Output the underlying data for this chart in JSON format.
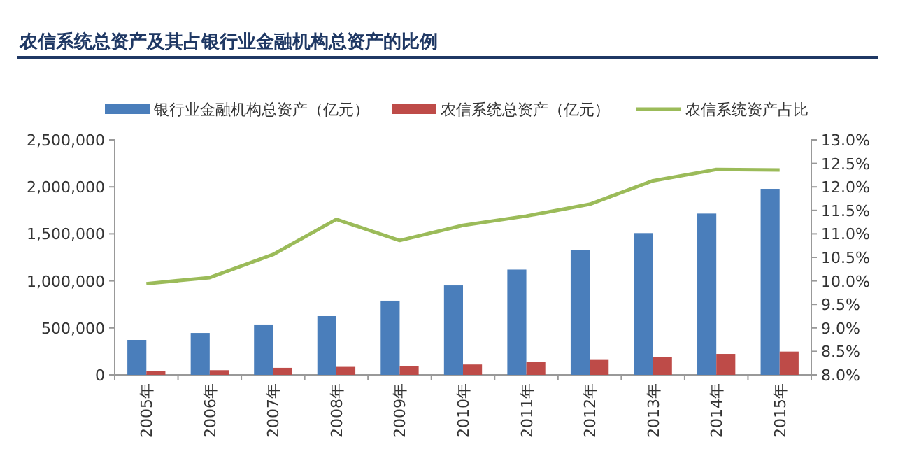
{
  "chart_data": {
    "type": "bar",
    "title": "农信系统总资产及其占银行业金融机构总资产的比例",
    "categories": [
      "2005年",
      "2006年",
      "2007年",
      "2008年",
      "2009年",
      "2010年",
      "2011年",
      "2012年",
      "2013年",
      "2014年",
      "2015年"
    ],
    "series": [
      {
        "name": "银行业金融机构总资产（亿元）",
        "color": "#4a7ebb",
        "values": [
          372000,
          446000,
          536000,
          625000,
          789000,
          952000,
          1120000,
          1329000,
          1508000,
          1716000,
          1979000
        ]
      },
      {
        "name": "农信系统总资产（亿元）",
        "color": "#be4b48",
        "values": [
          40000,
          50000,
          75000,
          85000,
          95000,
          110000,
          134000,
          159000,
          189000,
          223000,
          248000
        ]
      },
      {
        "name": "农信系统资产占比",
        "type": "line",
        "axis": "y2",
        "color": "#9bbb59",
        "values": [
          9.94,
          10.07,
          10.56,
          11.31,
          10.86,
          11.18,
          11.38,
          11.63,
          12.13,
          12.37,
          12.36
        ]
      }
    ],
    "ylim": [
      0,
      2500000
    ],
    "yticks": [
      {
        "value": 0,
        "label": "0"
      },
      {
        "value": 500000,
        "label": "500,000"
      },
      {
        "value": 1000000,
        "label": "1,000,000"
      },
      {
        "value": 1500000,
        "label": "1,500,000"
      },
      {
        "value": 2000000,
        "label": "2,000,000"
      },
      {
        "value": 2500000,
        "label": "2,500,000"
      }
    ],
    "y2lim": [
      8,
      13
    ],
    "y2ticks": [
      {
        "value": 8,
        "label": "8.0%"
      },
      {
        "value": 8.5,
        "label": "8.5%"
      },
      {
        "value": 9,
        "label": "9.0%"
      },
      {
        "value": 9.5,
        "label": "9.5%"
      },
      {
        "value": 10,
        "label": "10.0%"
      },
      {
        "value": 10.5,
        "label": "10.5%"
      },
      {
        "value": 11,
        "label": "11.0%"
      },
      {
        "value": 11.5,
        "label": "11.5%"
      },
      {
        "value": 12,
        "label": "12.0%"
      },
      {
        "value": 12.5,
        "label": "12.5%"
      },
      {
        "value": 13,
        "label": "13.0%"
      }
    ],
    "legend": "top",
    "grid": false
  }
}
